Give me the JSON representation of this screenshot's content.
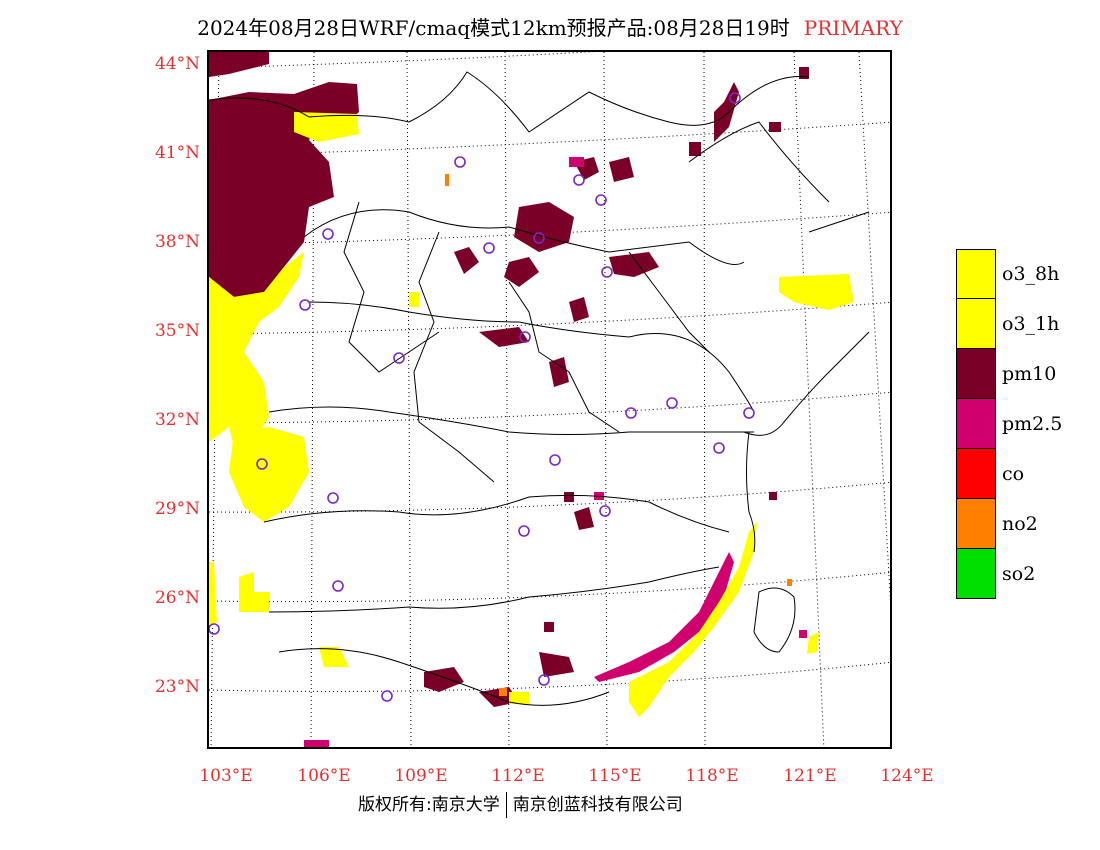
{
  "title": {
    "main": "2024年08月28日WRF/cmaq模式12km预报产品:08月28日19时",
    "tag": "PRIMARY"
  },
  "lat_labels": [
    "44°N",
    "41°N",
    "38°N",
    "35°N",
    "32°N",
    "29°N",
    "26°N",
    "23°N"
  ],
  "lon_labels": [
    "103°E",
    "106°E",
    "109°E",
    "112°E",
    "115°E",
    "118°E",
    "121°E",
    "124°E"
  ],
  "legend": [
    {
      "label": "o3_8h",
      "color": "#ffff00"
    },
    {
      "label": "o3_1h",
      "color": "#ffff00"
    },
    {
      "label": "pm10",
      "color": "#7b0028"
    },
    {
      "label": "pm2.5",
      "color": "#d0006f"
    },
    {
      "label": "co",
      "color": "#ff0000"
    },
    {
      "label": "no2",
      "color": "#ff7f00"
    },
    {
      "label": "so2",
      "color": "#00e000"
    }
  ],
  "footer": {
    "left": "版权所有:南京大学",
    "right": "南京创蓝科技有限公司"
  },
  "colors": {
    "pm10": "#7b0028",
    "pm25": "#d0006f",
    "o3": "#ffff00",
    "no2": "#ff7f00",
    "label": "#e53030",
    "station": "#7a28c8"
  }
}
